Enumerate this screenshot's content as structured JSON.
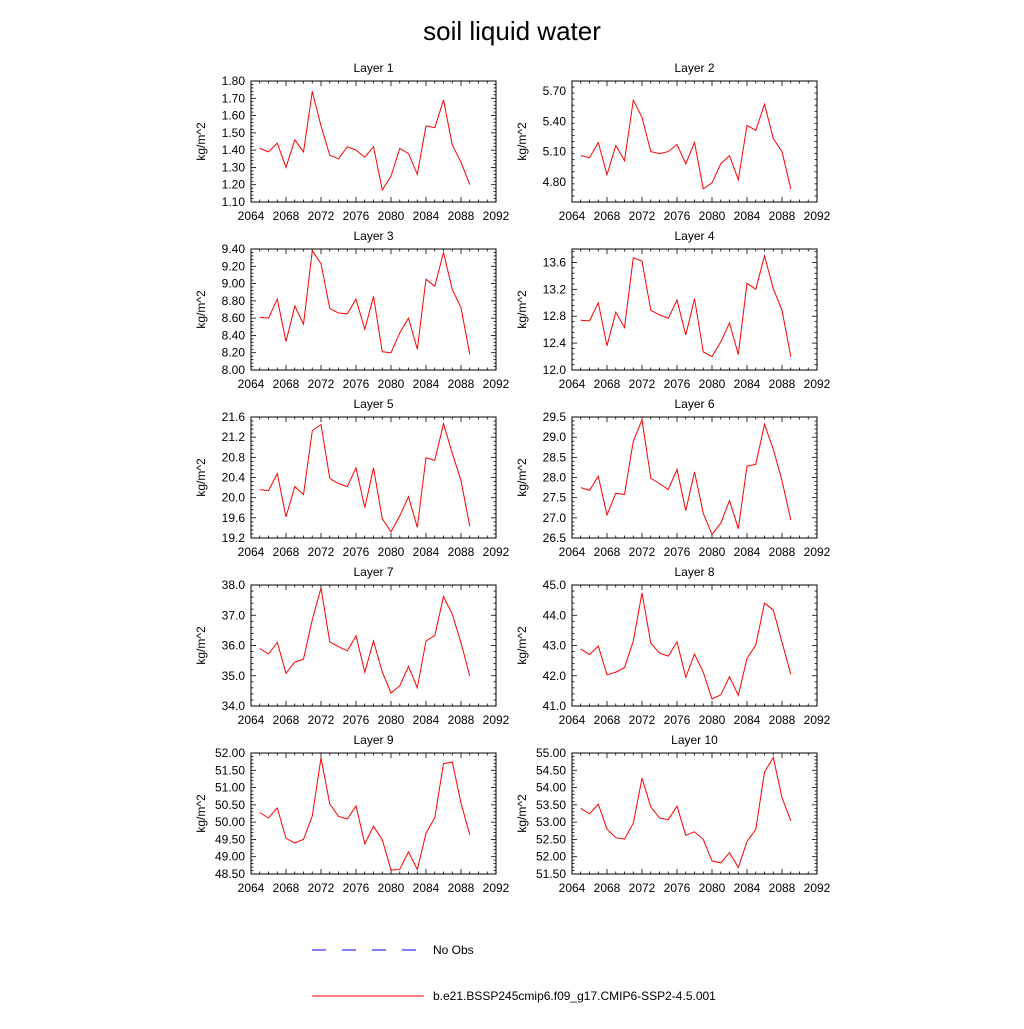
{
  "title": "soil liquid water",
  "legend": {
    "items": [
      {
        "label": "No Obs",
        "color": "#0000ff",
        "style": "dashed"
      },
      {
        "label": "b.e21.BSSP245cmip6.f09_g17.CMIP6-SSP2-4.5.001",
        "color": "#ff0000",
        "style": "solid"
      }
    ]
  },
  "colors": {
    "series": "#ff0000",
    "axis": "#000000"
  },
  "chart_data": [
    {
      "type": "line",
      "title": "Layer 1",
      "ylabel": "kg/m^2",
      "xlim": [
        2064,
        2092
      ],
      "ylim": [
        1.1,
        1.8
      ],
      "xticks": [
        "2064",
        "2068",
        "2072",
        "2076",
        "2080",
        "2084",
        "2088",
        "2092"
      ],
      "yticks": [
        "1.10",
        "1.20",
        "1.30",
        "1.40",
        "1.50",
        "1.60",
        "1.70",
        "1.80"
      ],
      "x": [
        2065,
        2066,
        2067,
        2068,
        2069,
        2070,
        2071,
        2072,
        2073,
        2074,
        2075,
        2076,
        2077,
        2078,
        2079,
        2080,
        2081,
        2082,
        2083,
        2084,
        2085,
        2086,
        2087,
        2088,
        2089
      ],
      "values": [
        1.41,
        1.39,
        1.44,
        1.3,
        1.46,
        1.39,
        1.74,
        1.54,
        1.37,
        1.35,
        1.42,
        1.4,
        1.36,
        1.42,
        1.17,
        1.25,
        1.41,
        1.38,
        1.26,
        1.54,
        1.53,
        1.69,
        1.43,
        1.33,
        1.2
      ]
    },
    {
      "type": "line",
      "title": "Layer 2",
      "ylabel": "kg/m^2",
      "xlim": [
        2064,
        2092
      ],
      "ylim": [
        4.6,
        5.8
      ],
      "xticks": [
        "2064",
        "2068",
        "2072",
        "2076",
        "2080",
        "2084",
        "2088",
        "2092"
      ],
      "yticks": [
        "4.80",
        "5.10",
        "5.40",
        "5.70"
      ],
      "x": [
        2065,
        2066,
        2067,
        2068,
        2069,
        2070,
        2071,
        2072,
        2073,
        2074,
        2075,
        2076,
        2077,
        2078,
        2079,
        2080,
        2081,
        2082,
        2083,
        2084,
        2085,
        2086,
        2087,
        2088,
        2089
      ],
      "values": [
        5.06,
        5.04,
        5.19,
        4.87,
        5.16,
        5.01,
        5.61,
        5.44,
        5.1,
        5.08,
        5.1,
        5.17,
        4.98,
        5.19,
        4.73,
        4.79,
        4.98,
        5.06,
        4.82,
        5.36,
        5.31,
        5.57,
        5.23,
        5.1,
        4.73
      ]
    },
    {
      "type": "line",
      "title": "Layer 3",
      "ylabel": "kg/m^2",
      "xlim": [
        2064,
        2092
      ],
      "ylim": [
        8.0,
        9.4
      ],
      "xticks": [
        "2064",
        "2068",
        "2072",
        "2076",
        "2080",
        "2084",
        "2088",
        "2092"
      ],
      "yticks": [
        "8.00",
        "8.20",
        "8.40",
        "8.60",
        "8.80",
        "9.00",
        "9.20",
        "9.40"
      ],
      "x": [
        2065,
        2066,
        2067,
        2068,
        2069,
        2070,
        2071,
        2072,
        2073,
        2074,
        2075,
        2076,
        2077,
        2078,
        2079,
        2080,
        2081,
        2082,
        2083,
        2084,
        2085,
        2086,
        2087,
        2088,
        2089
      ],
      "values": [
        8.61,
        8.6,
        8.82,
        8.33,
        8.74,
        8.53,
        9.38,
        9.23,
        8.71,
        8.66,
        8.65,
        8.82,
        8.47,
        8.85,
        8.21,
        8.2,
        8.43,
        8.6,
        8.24,
        9.05,
        8.97,
        9.36,
        8.93,
        8.72,
        8.18
      ]
    },
    {
      "type": "line",
      "title": "Layer 4",
      "ylabel": "kg/m^2",
      "xlim": [
        2064,
        2092
      ],
      "ylim": [
        12.0,
        13.8
      ],
      "xticks": [
        "2064",
        "2068",
        "2072",
        "2076",
        "2080",
        "2084",
        "2088",
        "2092"
      ],
      "yticks": [
        "12.0",
        "12.4",
        "12.8",
        "13.2",
        "13.6"
      ],
      "x": [
        2065,
        2066,
        2067,
        2068,
        2069,
        2070,
        2071,
        2072,
        2073,
        2074,
        2075,
        2076,
        2077,
        2078,
        2079,
        2080,
        2081,
        2082,
        2083,
        2084,
        2085,
        2086,
        2087,
        2088,
        2089
      ],
      "values": [
        12.74,
        12.73,
        13.0,
        12.36,
        12.86,
        12.63,
        13.67,
        13.62,
        12.89,
        12.82,
        12.77,
        13.04,
        12.52,
        13.06,
        12.27,
        12.2,
        12.42,
        12.7,
        12.23,
        13.29,
        13.2,
        13.7,
        13.21,
        12.89,
        12.2
      ]
    },
    {
      "type": "line",
      "title": "Layer 5",
      "ylabel": "kg/m^2",
      "xlim": [
        2064,
        2092
      ],
      "ylim": [
        19.2,
        21.6
      ],
      "xticks": [
        "2064",
        "2068",
        "2072",
        "2076",
        "2080",
        "2084",
        "2088",
        "2092"
      ],
      "yticks": [
        "19.2",
        "19.6",
        "20.0",
        "20.4",
        "20.8",
        "21.2",
        "21.6"
      ],
      "x": [
        2065,
        2066,
        2067,
        2068,
        2069,
        2070,
        2071,
        2072,
        2073,
        2074,
        2075,
        2076,
        2077,
        2078,
        2079,
        2080,
        2081,
        2082,
        2083,
        2084,
        2085,
        2086,
        2087,
        2088,
        2089
      ],
      "values": [
        20.16,
        20.14,
        20.48,
        19.62,
        20.22,
        20.06,
        21.33,
        21.45,
        20.38,
        20.28,
        20.22,
        20.59,
        19.8,
        20.59,
        19.58,
        19.32,
        19.64,
        20.02,
        19.41,
        20.79,
        20.74,
        21.47,
        20.88,
        20.34,
        19.43
      ]
    },
    {
      "type": "line",
      "title": "Layer 6",
      "ylabel": "kg/m^2",
      "xlim": [
        2064,
        2092
      ],
      "ylim": [
        26.5,
        29.5
      ],
      "xticks": [
        "2064",
        "2068",
        "2072",
        "2076",
        "2080",
        "2084",
        "2088",
        "2092"
      ],
      "yticks": [
        "26.5",
        "27.0",
        "27.5",
        "28.0",
        "28.5",
        "29.0",
        "29.5"
      ],
      "x": [
        2065,
        2066,
        2067,
        2068,
        2069,
        2070,
        2071,
        2072,
        2073,
        2074,
        2075,
        2076,
        2077,
        2078,
        2079,
        2080,
        2081,
        2082,
        2083,
        2084,
        2085,
        2086,
        2087,
        2088,
        2089
      ],
      "values": [
        27.75,
        27.68,
        28.03,
        27.07,
        27.61,
        27.58,
        28.9,
        29.43,
        27.98,
        27.85,
        27.7,
        28.2,
        27.18,
        28.14,
        27.11,
        26.59,
        26.87,
        27.43,
        26.73,
        28.28,
        28.33,
        29.32,
        28.7,
        27.92,
        26.95
      ]
    },
    {
      "type": "line",
      "title": "Layer 7",
      "ylabel": "kg/m^2",
      "xlim": [
        2064,
        2092
      ],
      "ylim": [
        34.0,
        38.0
      ],
      "xticks": [
        "2064",
        "2068",
        "2072",
        "2076",
        "2080",
        "2084",
        "2088",
        "2092"
      ],
      "yticks": [
        "34.0",
        "35.0",
        "36.0",
        "37.0",
        "38.0"
      ],
      "x": [
        2065,
        2066,
        2067,
        2068,
        2069,
        2070,
        2071,
        2072,
        2073,
        2074,
        2075,
        2076,
        2077,
        2078,
        2079,
        2080,
        2081,
        2082,
        2083,
        2084,
        2085,
        2086,
        2087,
        2088,
        2089
      ],
      "values": [
        35.9,
        35.72,
        36.1,
        35.08,
        35.45,
        35.55,
        36.85,
        37.9,
        36.12,
        35.96,
        35.82,
        36.32,
        35.12,
        36.15,
        35.12,
        34.43,
        34.67,
        35.31,
        34.6,
        36.15,
        36.33,
        37.62,
        37.03,
        36.09,
        34.99
      ]
    },
    {
      "type": "line",
      "title": "Layer 8",
      "ylabel": "kg/m^2",
      "xlim": [
        2064,
        2092
      ],
      "ylim": [
        41.0,
        45.0
      ],
      "xticks": [
        "2064",
        "2068",
        "2072",
        "2076",
        "2080",
        "2084",
        "2088",
        "2092"
      ],
      "yticks": [
        "41.0",
        "42.0",
        "43.0",
        "44.0",
        "45.0"
      ],
      "x": [
        2065,
        2066,
        2067,
        2068,
        2069,
        2070,
        2071,
        2072,
        2073,
        2074,
        2075,
        2076,
        2077,
        2078,
        2079,
        2080,
        2081,
        2082,
        2083,
        2084,
        2085,
        2086,
        2087,
        2088,
        2089
      ],
      "values": [
        42.88,
        42.7,
        42.98,
        42.03,
        42.12,
        42.27,
        43.15,
        44.74,
        43.08,
        42.75,
        42.65,
        43.12,
        41.95,
        42.72,
        42.11,
        41.23,
        41.37,
        41.97,
        41.35,
        42.57,
        43.02,
        44.4,
        44.17,
        43.11,
        42.05
      ]
    },
    {
      "type": "line",
      "title": "Layer 9",
      "ylabel": "kg/m^2",
      "xlim": [
        2064,
        2092
      ],
      "ylim": [
        48.5,
        52.0
      ],
      "xticks": [
        "2064",
        "2068",
        "2072",
        "2076",
        "2080",
        "2084",
        "2088",
        "2092"
      ],
      "yticks": [
        "48.50",
        "49.00",
        "49.50",
        "50.00",
        "50.50",
        "51.00",
        "51.50",
        "52.00"
      ],
      "x": [
        2065,
        2066,
        2067,
        2068,
        2069,
        2070,
        2071,
        2072,
        2073,
        2074,
        2075,
        2076,
        2077,
        2078,
        2079,
        2080,
        2081,
        2082,
        2083,
        2084,
        2085,
        2086,
        2087,
        2088,
        2089
      ],
      "values": [
        50.28,
        50.12,
        50.41,
        49.53,
        49.4,
        49.5,
        50.18,
        51.86,
        50.52,
        50.17,
        50.09,
        50.47,
        49.37,
        49.88,
        49.49,
        48.61,
        48.64,
        49.14,
        48.63,
        49.68,
        50.13,
        51.69,
        51.74,
        50.55,
        49.63
      ]
    },
    {
      "type": "line",
      "title": "Layer 10",
      "ylabel": "kg/m^2",
      "xlim": [
        2064,
        2092
      ],
      "ylim": [
        51.5,
        55.0
      ],
      "xticks": [
        "2064",
        "2068",
        "2072",
        "2076",
        "2080",
        "2084",
        "2088",
        "2092"
      ],
      "yticks": [
        "51.50",
        "52.00",
        "52.50",
        "53.00",
        "53.50",
        "54.00",
        "54.50",
        "55.00"
      ],
      "x": [
        2065,
        2066,
        2067,
        2068,
        2069,
        2070,
        2071,
        2072,
        2073,
        2074,
        2075,
        2076,
        2077,
        2078,
        2079,
        2080,
        2081,
        2082,
        2083,
        2084,
        2085,
        2086,
        2087,
        2088,
        2089
      ],
      "values": [
        53.4,
        53.24,
        53.52,
        52.8,
        52.55,
        52.51,
        52.97,
        54.27,
        53.44,
        53.12,
        53.07,
        53.46,
        52.62,
        52.72,
        52.5,
        51.88,
        51.82,
        52.12,
        51.69,
        52.44,
        52.79,
        54.45,
        54.87,
        53.71,
        53.04
      ]
    }
  ]
}
